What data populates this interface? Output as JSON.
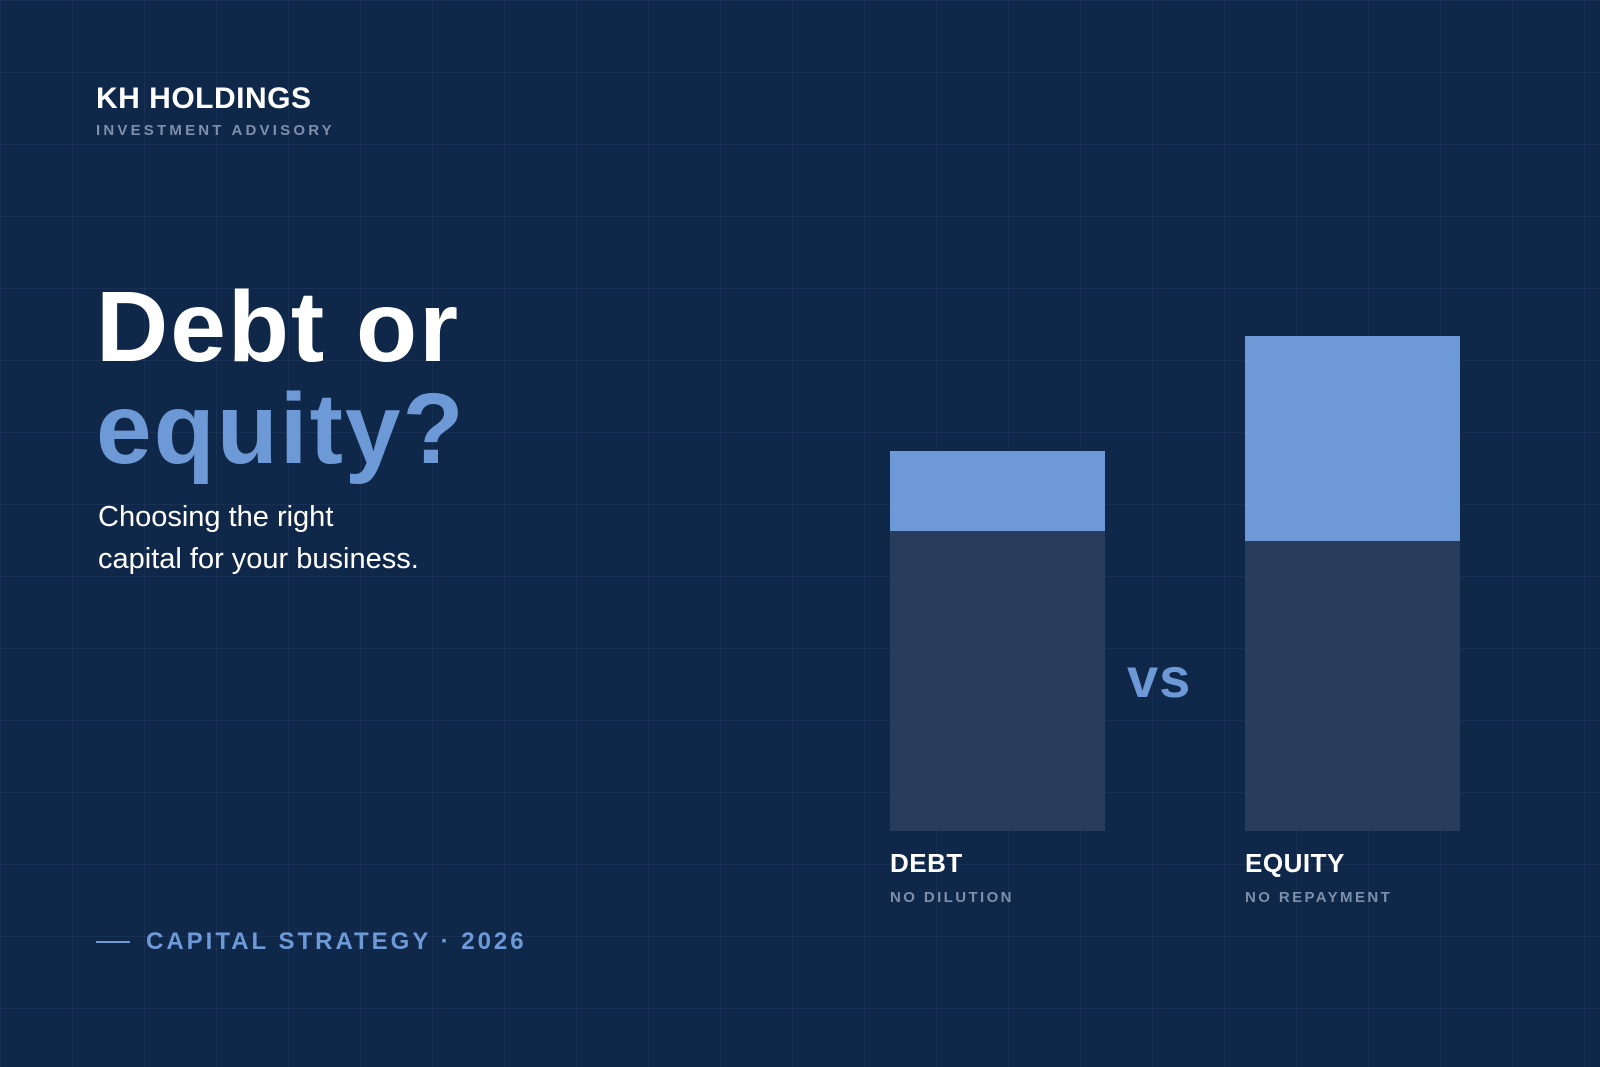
{
  "brand": {
    "name": "KH HOLDINGS",
    "subtitle": "INVESTMENT ADVISORY"
  },
  "headline": {
    "line1": "Debt or",
    "line2": "equity?"
  },
  "tagline": {
    "line1": "Choosing the right",
    "line2": "capital for your business."
  },
  "footer": {
    "text": "CAPITAL STRATEGY · 2026"
  },
  "comparison": {
    "vs_label": "vs",
    "left": {
      "label": "DEBT",
      "sublabel": "NO DILUTION"
    },
    "right": {
      "label": "EQUITY",
      "sublabel": "NO REPAYMENT"
    }
  },
  "chart_data": {
    "type": "bar",
    "categories": [
      "DEBT",
      "EQUITY"
    ],
    "series": [
      {
        "values": [
          300,
          290
        ]
      },
      {
        "values": [
          80,
          205
        ]
      }
    ],
    "stacked": true,
    "ylim": [
      0,
      500
    ],
    "grid": false,
    "colors": {
      "base": "#283d5d",
      "top": "#6d9ad6"
    }
  },
  "colors": {
    "background": "#0f2749",
    "accent": "#6d9ad6",
    "muted": "#7d8fab",
    "text": "#ffffff"
  }
}
